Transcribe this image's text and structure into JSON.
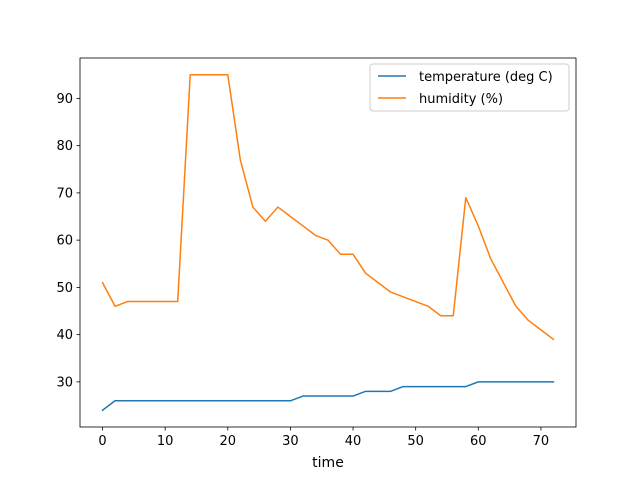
{
  "chart_data": {
    "type": "line",
    "xlabel": "time",
    "ylabel": "",
    "title": "",
    "xlim": [
      -3.6,
      75.6
    ],
    "ylim": [
      20.45,
      98.55
    ],
    "xticks": [
      0,
      10,
      20,
      30,
      40,
      50,
      60,
      70
    ],
    "yticks": [
      30,
      40,
      50,
      60,
      70,
      80,
      90
    ],
    "grid": false,
    "legend_position": "top-right",
    "series": [
      {
        "name": "temperature (deg C)",
        "color": "#1f77b4",
        "x": [
          0,
          2,
          4,
          6,
          8,
          10,
          12,
          14,
          16,
          18,
          20,
          22,
          24,
          26,
          28,
          30,
          32,
          34,
          36,
          38,
          40,
          42,
          44,
          46,
          48,
          50,
          52,
          54,
          56,
          58,
          60,
          62,
          64,
          66,
          68,
          70,
          72
        ],
        "y": [
          24,
          26,
          26,
          26,
          26,
          26,
          26,
          26,
          26,
          26,
          26,
          26,
          26,
          26,
          26,
          26,
          27,
          27,
          27,
          27,
          27,
          28,
          28,
          28,
          29,
          29,
          29,
          29,
          29,
          29,
          30,
          30,
          30,
          30,
          30,
          30,
          30
        ]
      },
      {
        "name": "humidity (%)",
        "color": "#ff7f0e",
        "x": [
          0,
          2,
          4,
          6,
          8,
          10,
          12,
          14,
          16,
          18,
          20,
          22,
          24,
          26,
          28,
          30,
          32,
          34,
          36,
          38,
          40,
          42,
          44,
          46,
          48,
          50,
          52,
          54,
          56,
          58,
          60,
          62,
          64,
          66,
          68,
          70,
          72
        ],
        "y": [
          51,
          46,
          47,
          47,
          47,
          47,
          47,
          95,
          95,
          95,
          95,
          77,
          67,
          64,
          67,
          65,
          63,
          61,
          60,
          57,
          57,
          53,
          51,
          49,
          48,
          47,
          46,
          44,
          44,
          69,
          63,
          56,
          51,
          46,
          43,
          41,
          39
        ]
      }
    ]
  }
}
